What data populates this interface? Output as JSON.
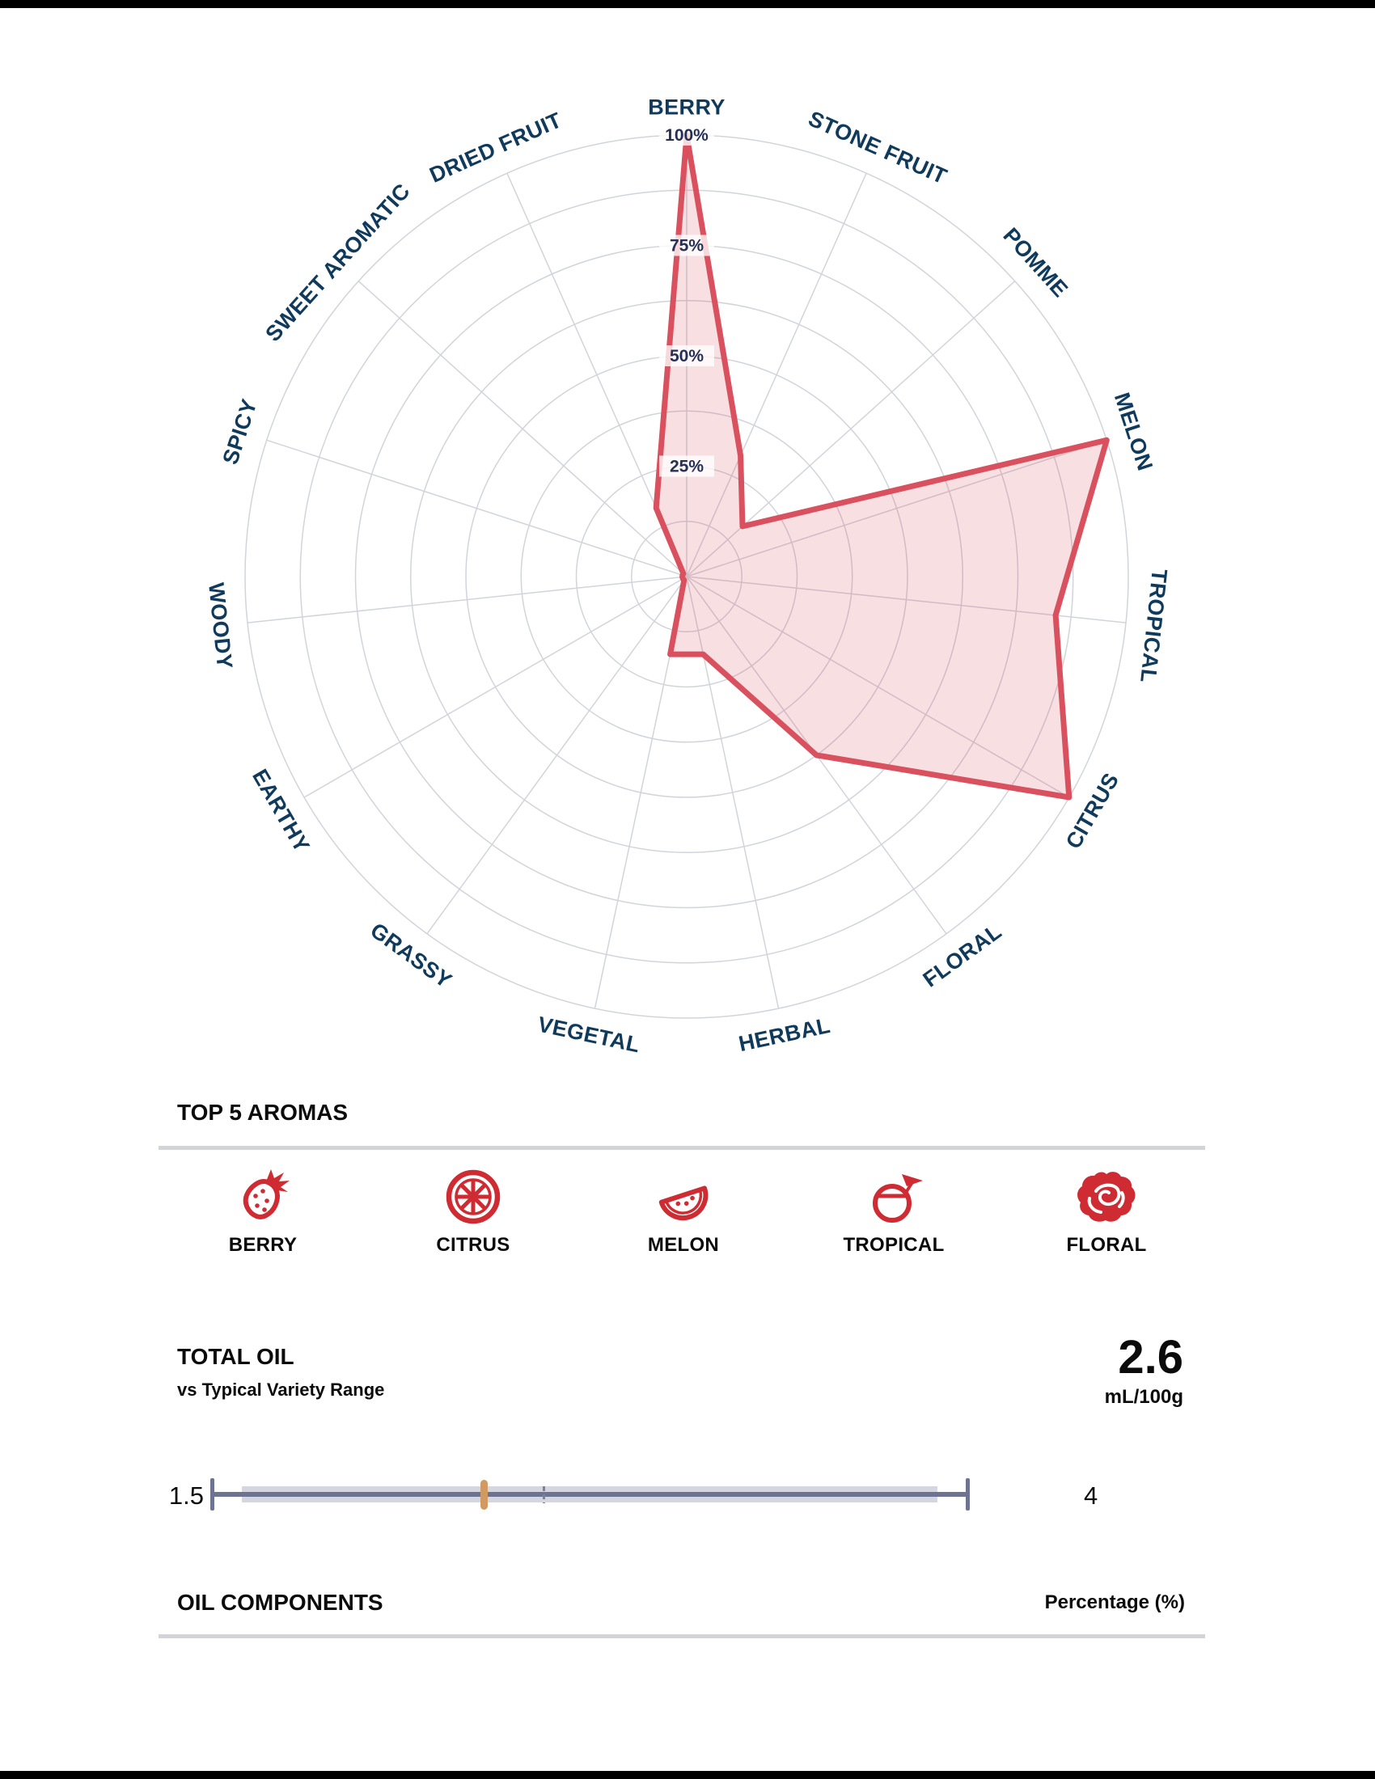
{
  "chart_data": {
    "type": "radar",
    "title": "Aroma profile radar",
    "categories": [
      "BERRY",
      "STONE FRUIT",
      "POMME",
      "MELON",
      "TROPICAL",
      "CITRUS",
      "FLORAL",
      "HERBAL",
      "VEGETAL",
      "GRASSY",
      "EARTHY",
      "WOODY",
      "SPICY",
      "SWEET AROMATIC",
      "DRIED FRUIT"
    ],
    "values": [
      100,
      30,
      17,
      100,
      84,
      100,
      50,
      18,
      18,
      1,
      1,
      1,
      1,
      1,
      17
    ],
    "radial_tick_labels": [
      "25%",
      "50%",
      "75%",
      "100%"
    ],
    "radial_range": [
      0,
      100
    ],
    "rings": 8,
    "grid": true,
    "series_color": "#d9505e"
  },
  "radar": {
    "tick_labels": [
      "25%",
      "50%",
      "75%",
      "100%"
    ],
    "axes": [
      {
        "label": "BERRY",
        "value": 100
      },
      {
        "label": "STONE FRUIT",
        "value": 30
      },
      {
        "label": "POMME",
        "value": 17
      },
      {
        "label": "MELON",
        "value": 100
      },
      {
        "label": "TROPICAL",
        "value": 84
      },
      {
        "label": "CITRUS",
        "value": 100
      },
      {
        "label": "FLORAL",
        "value": 50
      },
      {
        "label": "HERBAL",
        "value": 18
      },
      {
        "label": "VEGETAL",
        "value": 18
      },
      {
        "label": "GRASSY",
        "value": 1
      },
      {
        "label": "EARTHY",
        "value": 1
      },
      {
        "label": "WOODY",
        "value": 1
      },
      {
        "label": "SPICY",
        "value": 1
      },
      {
        "label": "SWEET AROMATIC",
        "value": 1
      },
      {
        "label": "DRIED FRUIT",
        "value": 17
      }
    ]
  },
  "top_aromas": {
    "heading": "TOP 5 AROMAS",
    "items": [
      {
        "label": "BERRY",
        "icon": "strawberry-icon"
      },
      {
        "label": "CITRUS",
        "icon": "citrus-slice-icon"
      },
      {
        "label": "MELON",
        "icon": "melon-slice-icon"
      },
      {
        "label": "TROPICAL",
        "icon": "coconut-drink-icon"
      },
      {
        "label": "FLORAL",
        "icon": "rose-icon"
      }
    ]
  },
  "total_oil": {
    "heading": "TOTAL OIL",
    "subheading": "vs Typical Variety Range",
    "value": "2.6",
    "unit": "mL/100g",
    "slider": {
      "min_label": "1.5",
      "max_label": "4",
      "min": 1.5,
      "max": 4,
      "typical_range": [
        1.6,
        3.9
      ],
      "orange_marker": 2.4,
      "dash_marker": 2.6
    }
  },
  "oil_components": {
    "heading": "OIL COMPONENTS",
    "right_label": "Percentage (%)"
  },
  "colors": {
    "accent_red": "#d9505e",
    "fill_pink": "rgba(217,80,94,0.18)",
    "icon_red": "#cf2b33",
    "navy": "#0f3a5c",
    "tick_navy": "#253055",
    "grid_gray": "#d2d4dc",
    "slider_dark": "#6e7391",
    "slider_band": "#d4d6e1",
    "slider_orange": "#d09a62",
    "divider_gray": "#d2d4d9"
  }
}
